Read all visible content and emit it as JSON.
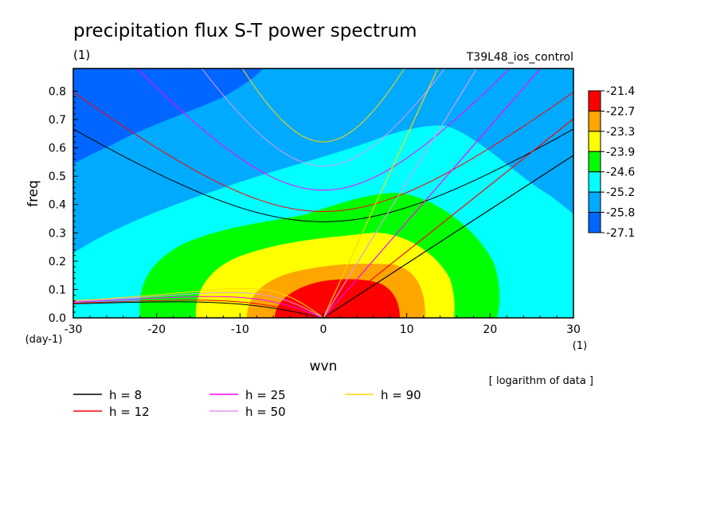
{
  "chart_data": {
    "type": "heatmap",
    "title": "precipitation flux S-T power spectrum",
    "subtitle_left": "(1)",
    "subtitle_right": "T39L48_ios_control",
    "xlabel": "wvn",
    "ylabel": "freq",
    "x_unit": "(1)",
    "y_unit": "(day-1)",
    "note": "[ logarithm of data ]",
    "xlim": [
      -30,
      30
    ],
    "ylim": [
      0,
      0.88
    ],
    "x_ticks": [
      "-30",
      "-20",
      "-10",
      "0",
      "10",
      "20",
      "30"
    ],
    "y_ticks": [
      "0.0",
      "0.1",
      "0.2",
      "0.3",
      "0.4",
      "0.5",
      "0.6",
      "0.7",
      "0.8"
    ],
    "colorbar": {
      "labels": [
        "-21.4",
        "-22.7",
        "-23.3",
        "-23.9",
        "-24.6",
        "-25.2",
        "-25.8",
        "-27.1"
      ],
      "colors": [
        "#ff0000",
        "#ffa500",
        "#ffff00",
        "#00ff00",
        "#00ffff",
        "#00aaff",
        "#0066ff"
      ]
    },
    "series": [
      {
        "name": "h =  8",
        "h": 8,
        "color": "#000000"
      },
      {
        "name": "h = 12",
        "h": 12,
        "color": "#ff0000"
      },
      {
        "name": "h = 25",
        "h": 25,
        "color": "#ff00ff"
      },
      {
        "name": "h = 50",
        "h": 50,
        "color": "#dd99ee"
      },
      {
        "name": "h = 90",
        "h": 90,
        "color": "#ffd700"
      }
    ]
  }
}
